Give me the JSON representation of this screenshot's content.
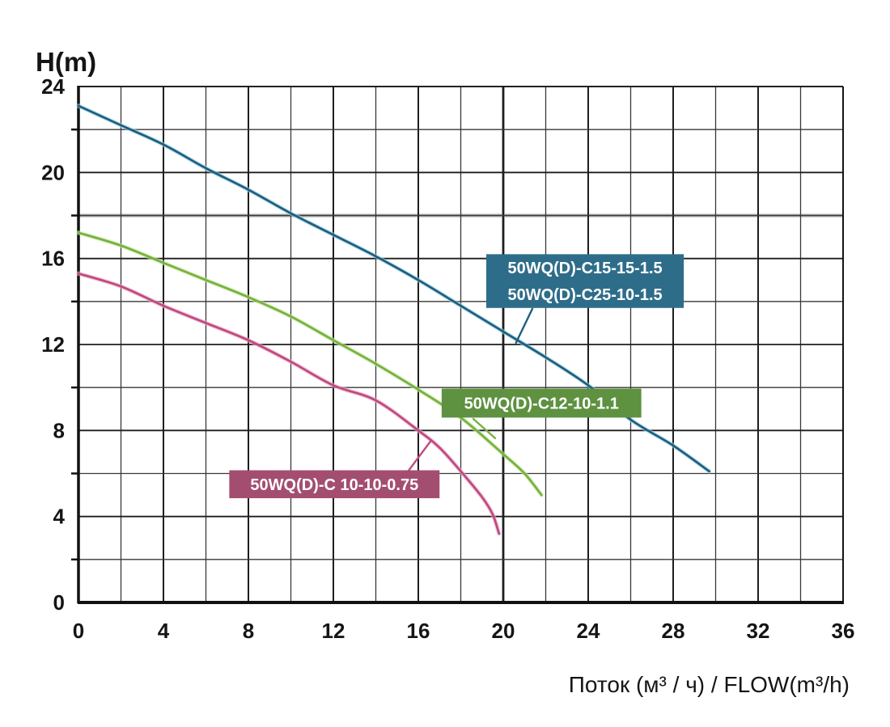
{
  "chart_data": {
    "type": "line",
    "title": "",
    "ylabel": "H(m)",
    "xlabel": "Поток (м³ / ч) / FLOW(m³/h)",
    "xlim": [
      0,
      36
    ],
    "ylim": [
      0,
      24
    ],
    "x_ticks": [
      0,
      4,
      8,
      12,
      16,
      20,
      24,
      28,
      32,
      36
    ],
    "y_ticks": [
      24,
      20,
      16,
      12,
      8,
      4,
      0
    ],
    "grid": {
      "step": 2,
      "major_step": 4,
      "minor_color": "#383838",
      "major_color": "#1e1e1e",
      "frame_color": "#111111",
      "highlight_color": "#8f8f8f",
      "highlight_x": 20,
      "highlight_y": 18,
      "legend_position": "inside-annotations"
    },
    "text_color": "#151515",
    "series": [
      {
        "id": "curve-c15-c25",
        "name": "50WQ(D)-C15-15-1.5 / 50WQ(D)-C25-10-1.5",
        "label_lines": [
          "50WQ(D)-C15-15-1.5",
          "50WQ(D)-C25-10-1.5"
        ],
        "color": "#1d5f80",
        "halo_color": "#a5d6e6",
        "label_bg": "#2e6d89",
        "label_text_color": "#ffffff",
        "label_box": {
          "x1": 19.2,
          "x2": 28.5,
          "y1": 13.7,
          "y2": 16.2
        },
        "leader": {
          "from": [
            21.37,
            13.66
          ],
          "to": [
            20.6,
            12.08
          ]
        },
        "points": [
          [
            0,
            23.1
          ],
          [
            2,
            22.2
          ],
          [
            4,
            21.3
          ],
          [
            6,
            20.2
          ],
          [
            8,
            19.2
          ],
          [
            10,
            18.1
          ],
          [
            12,
            17.1
          ],
          [
            14,
            16.1
          ],
          [
            16,
            15.0
          ],
          [
            18,
            13.8
          ],
          [
            20,
            12.6
          ],
          [
            22,
            11.4
          ],
          [
            24,
            10.1
          ],
          [
            26,
            8.5
          ],
          [
            28,
            7.3
          ],
          [
            29.7,
            6.1
          ]
        ]
      },
      {
        "id": "curve-c12",
        "name": "50WQ(D)-C12-10-1.1",
        "label_lines": [
          "50WQ(D)-C12-10-1.1"
        ],
        "color": "#76b23f",
        "halo_color": "#cde8a6",
        "label_bg": "#5e9140",
        "label_text_color": "#ffffff",
        "label_box": {
          "x1": 17.1,
          "x2": 26.5,
          "y1": 8.6,
          "y2": 9.95
        },
        "leader": {
          "from": [
            18.59,
            8.54
          ],
          "to": [
            19.62,
            7.64
          ]
        },
        "points": [
          [
            0,
            17.2
          ],
          [
            2,
            16.6
          ],
          [
            4,
            15.8
          ],
          [
            6,
            15.0
          ],
          [
            8,
            14.2
          ],
          [
            10,
            13.3
          ],
          [
            12,
            12.2
          ],
          [
            14,
            11.1
          ],
          [
            16,
            9.9
          ],
          [
            18,
            8.6
          ],
          [
            20,
            6.9
          ],
          [
            21,
            6.0
          ],
          [
            21.8,
            5.0
          ]
        ]
      },
      {
        "id": "curve-c10",
        "name": "50WQ(D)-C 10-10-0.75",
        "label_lines": [
          "50WQ(D)-C 10-10-0.75"
        ],
        "color": "#c04a80",
        "halo_color": "#edb0cc",
        "label_bg": "#a34e70",
        "label_text_color": "#ffffff",
        "label_box": {
          "x1": 7.1,
          "x2": 17.0,
          "y1": 4.85,
          "y2": 6.15
        },
        "leader": {
          "from": [
            15.54,
            6.13
          ],
          "to": [
            16.57,
            7.49
          ]
        },
        "points": [
          [
            0,
            15.3
          ],
          [
            2,
            14.7
          ],
          [
            4,
            13.8
          ],
          [
            6,
            13.0
          ],
          [
            8,
            12.2
          ],
          [
            10,
            11.2
          ],
          [
            12,
            10.1
          ],
          [
            14,
            9.4
          ],
          [
            16,
            8.0
          ],
          [
            17,
            7.2
          ],
          [
            18,
            6.1
          ],
          [
            19,
            4.9
          ],
          [
            19.5,
            4.1
          ],
          [
            19.8,
            3.2
          ]
        ]
      }
    ]
  }
}
